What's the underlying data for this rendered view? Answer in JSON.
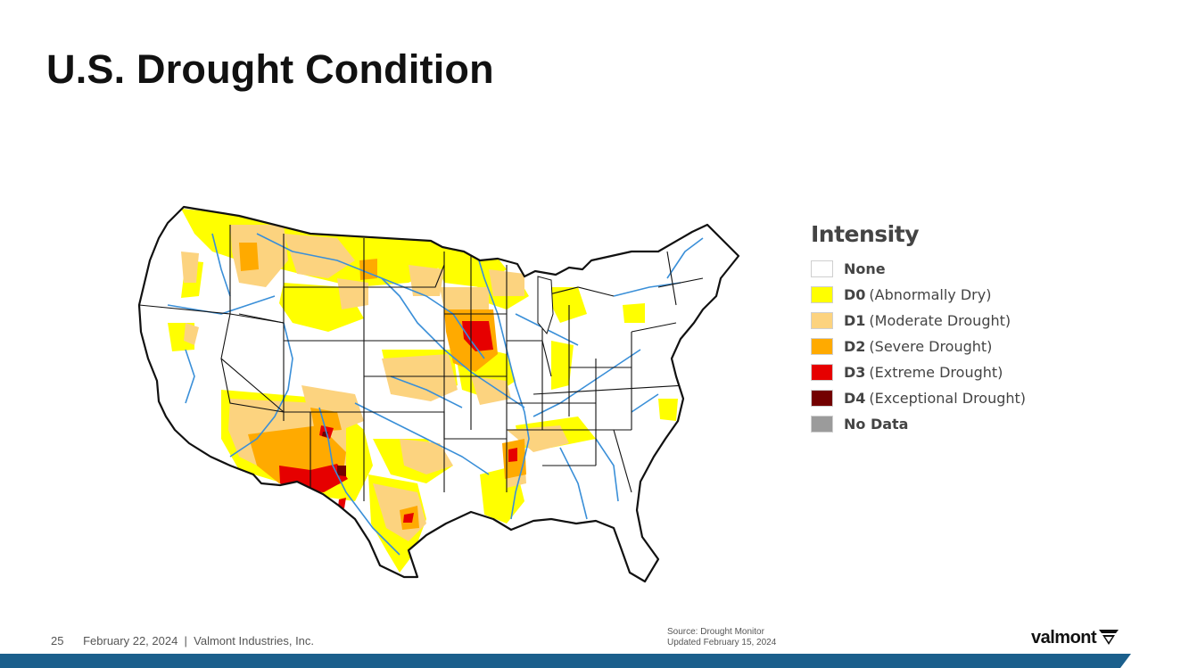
{
  "title": "U.S. Drought Condition",
  "legend": {
    "title": "Intensity",
    "items": [
      {
        "code": "None",
        "desc": "",
        "color": "#ffffff"
      },
      {
        "code": "D0",
        "desc": "(Abnormally Dry)",
        "color": "#ffff00"
      },
      {
        "code": "D1",
        "desc": "(Moderate Drought)",
        "color": "#fcd37f"
      },
      {
        "code": "D2",
        "desc": "(Severe Drought)",
        "color": "#ffaa00"
      },
      {
        "code": "D3",
        "desc": "(Extreme Drought)",
        "color": "#e60000"
      },
      {
        "code": "D4",
        "desc": "(Exceptional Drought)",
        "color": "#730000"
      },
      {
        "code": "No Data",
        "desc": "",
        "color": "#9b9b9b"
      }
    ]
  },
  "footer": {
    "page_number": "25",
    "date_company": "February 22, 2024  |  Valmont Industries, Inc.",
    "source_line1": "Source: Drought Monitor",
    "source_line2": "Updated February 15, 2024",
    "logo_text": "valmont"
  },
  "colors": {
    "river": "#3a8fd8",
    "border": "#111111",
    "bar_blue": "#1b5f8c"
  }
}
